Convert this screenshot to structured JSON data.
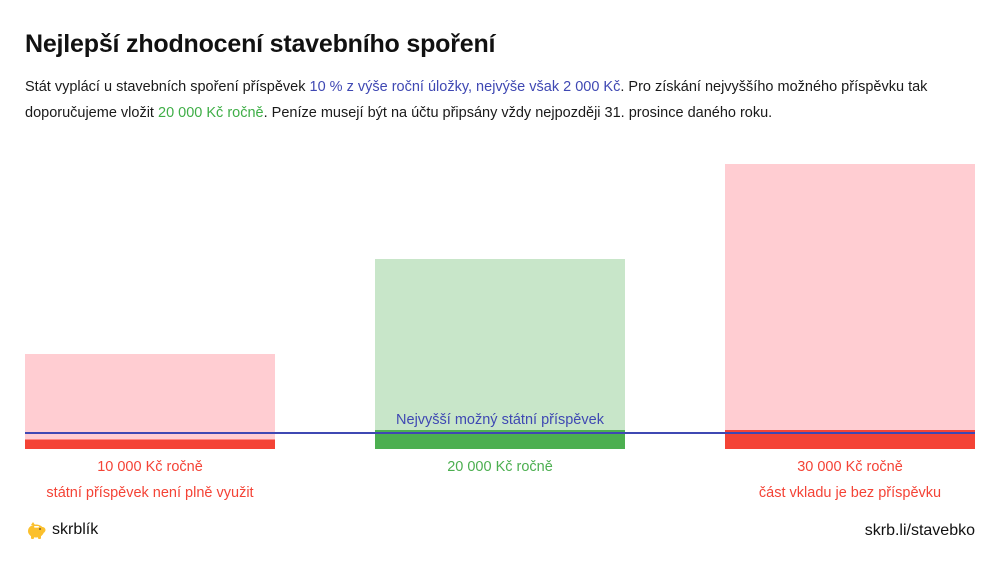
{
  "title": "Nejlepší zhodnocení stavebního spoření",
  "description": {
    "part1": "Stát vyplácí u stavebních spoření příspěvek ",
    "highlight_blue": "10 % z výše roční úložky, nejvýše však 2 000 Kč",
    "part2": ". Pro získání nejvyššího možného příspěvku tak doporučujeme vložit ",
    "highlight_green": "20 000 Kč ročně",
    "part3": ". Peníze musejí být na účtu připsány vždy nejpozději 31. prosince daného roku."
  },
  "chart_data": {
    "type": "bar",
    "categories": [
      "10 000 Kč ročně",
      "20 000 Kč ročně",
      "30 000 Kč ročně"
    ],
    "deposit_values": [
      10000,
      20000,
      30000
    ],
    "contribution_values": [
      1000,
      2000,
      2000
    ],
    "reference_line": {
      "label": "Nejvyšší možný státní příspěvek",
      "value": 2000,
      "color": "#3f48b3"
    },
    "notes": [
      "státní příspěvek není plně využit",
      "",
      "část vkladu je bez příspěvku"
    ],
    "bar_colors": [
      {
        "light": "#ffcdd2",
        "dark": "#f44336",
        "text": "#f44336"
      },
      {
        "light": "#c8e6c9",
        "dark": "#4caf50",
        "text": "#4caf50"
      },
      {
        "light": "#ffcdd2",
        "dark": "#f44336",
        "text": "#f44336"
      }
    ],
    "ylim": [
      0,
      30000
    ],
    "grid": false
  },
  "footer": {
    "logo_icon": "piggy-bank-icon",
    "logo_color": "#fbc02d",
    "logo_text": "skrblík",
    "url": "skrb.li/stavebko"
  }
}
